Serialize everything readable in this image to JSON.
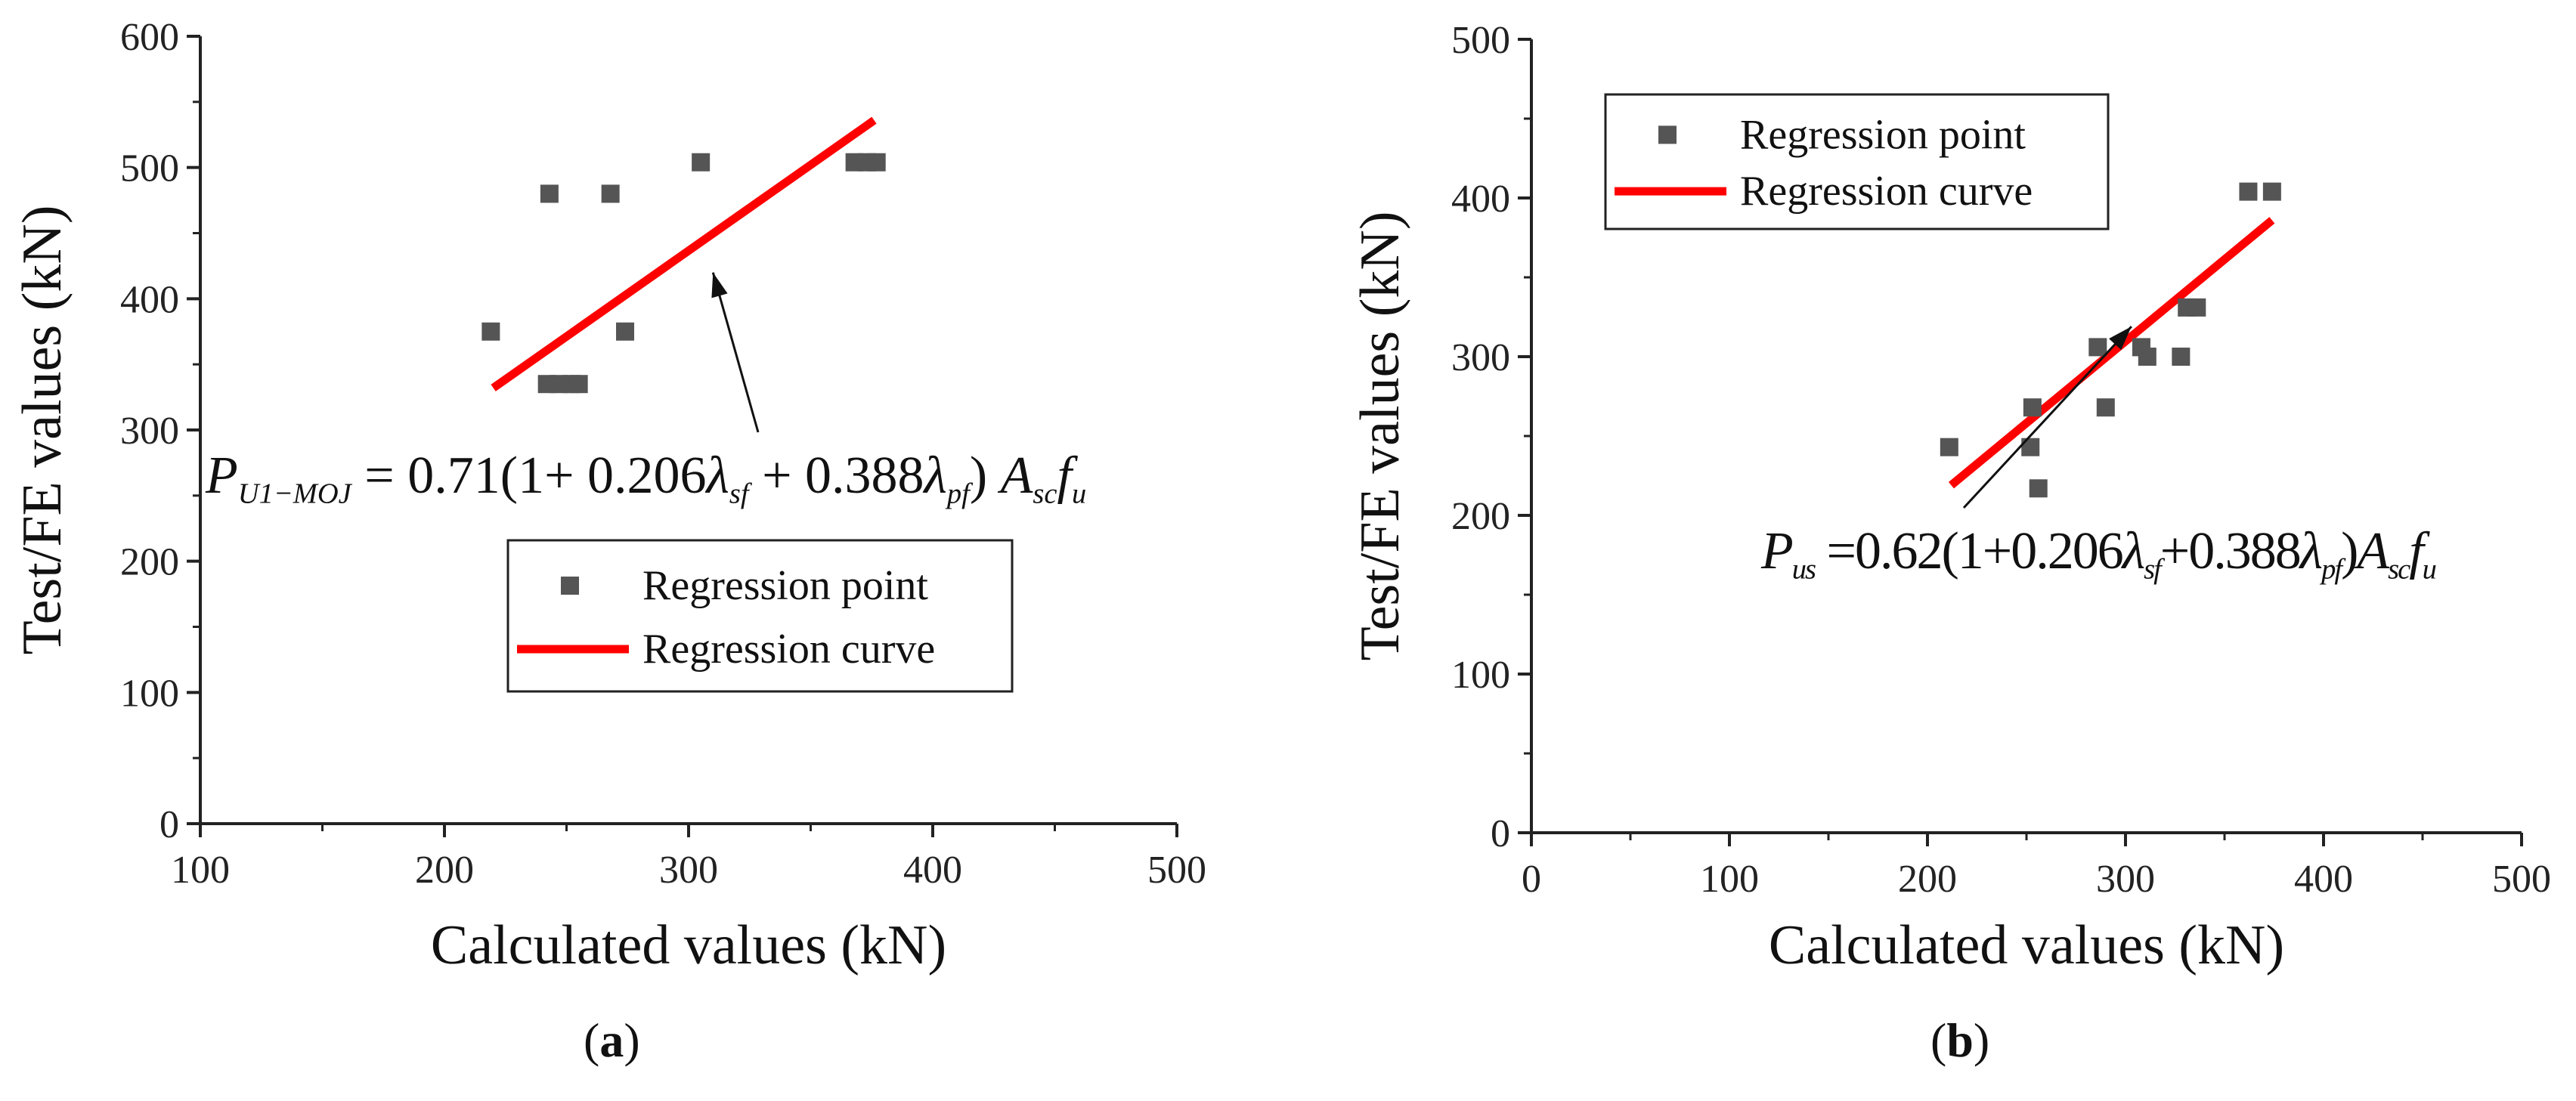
{
  "chart_data": [
    {
      "type": "scatter",
      "panel_label": "a",
      "xlabel": "Calculated values (kN)",
      "ylabel": "Test/FE values (kN)",
      "xlim": [
        100,
        500
      ],
      "ylim": [
        0,
        600
      ],
      "xticks": [
        100,
        200,
        300,
        400,
        500
      ],
      "yticks": [
        0,
        100,
        200,
        300,
        400,
        500,
        600
      ],
      "series": [
        {
          "name": "Regression point",
          "color": "#555555",
          "points": [
            [
              219,
              375
            ],
            [
              243,
              480
            ],
            [
              268,
              480
            ],
            [
              274,
              375
            ],
            [
              305,
              504
            ],
            [
              242,
              335
            ],
            [
              247,
              335
            ],
            [
              252,
              335
            ],
            [
              255,
              335
            ],
            [
              368,
              504
            ],
            [
              373,
              504
            ],
            [
              377,
              504
            ]
          ]
        },
        {
          "name": "Regression curve",
          "color": "#ff0000",
          "points": [
            [
              220,
              332
            ],
            [
              376,
              536
            ]
          ]
        }
      ],
      "legend": [
        "Regression point",
        "Regression curve"
      ],
      "annotation": {
        "formula": {
          "lhs_main": "P",
          "lhs_sub": "U1−MOJ",
          "coef": "0.71",
          "inner": "1+ 0.206",
          "lam1_sub": "sf",
          "mid": "+ 0.388",
          "lam2_sub": "pf",
          "a_sub": "sc",
          "f_sub": "u"
        },
        "arrow_to": [
          310,
          420
        ]
      }
    },
    {
      "type": "scatter",
      "panel_label": "b",
      "xlabel": "Calculated values (kN)",
      "ylabel": "Test/FE values (kN)",
      "xlim": [
        0,
        500
      ],
      "ylim": [
        0,
        500
      ],
      "xticks": [
        0,
        100,
        200,
        300,
        400,
        500
      ],
      "yticks": [
        0,
        100,
        200,
        300,
        400,
        500
      ],
      "series": [
        {
          "name": "Regression point",
          "color": "#555555",
          "points": [
            [
              211,
              243
            ],
            [
              252,
              243
            ],
            [
              253,
              268
            ],
            [
              256,
              217
            ],
            [
              286,
              306
            ],
            [
              290,
              268
            ],
            [
              308,
              306
            ],
            [
              311,
              300
            ],
            [
              328,
              300
            ],
            [
              331,
              331
            ],
            [
              336,
              331
            ],
            [
              362,
              404
            ],
            [
              374,
              404
            ]
          ]
        },
        {
          "name": "Regression curve",
          "color": "#ff0000",
          "points": [
            [
              212,
              219
            ],
            [
              374,
              386
            ]
          ]
        }
      ],
      "legend": [
        "Regression point",
        "Regression curve"
      ],
      "annotation": {
        "formula": {
          "lhs_main": "P",
          "lhs_sub": "us",
          "coef": "0.62",
          "inner": "1+0.206",
          "lam1_sub": "sf",
          "mid": "+0.388",
          "lam2_sub": "pf",
          "a_sub": "sc",
          "f_sub": "u"
        },
        "arrow_to": [
          303,
          319
        ]
      }
    }
  ]
}
